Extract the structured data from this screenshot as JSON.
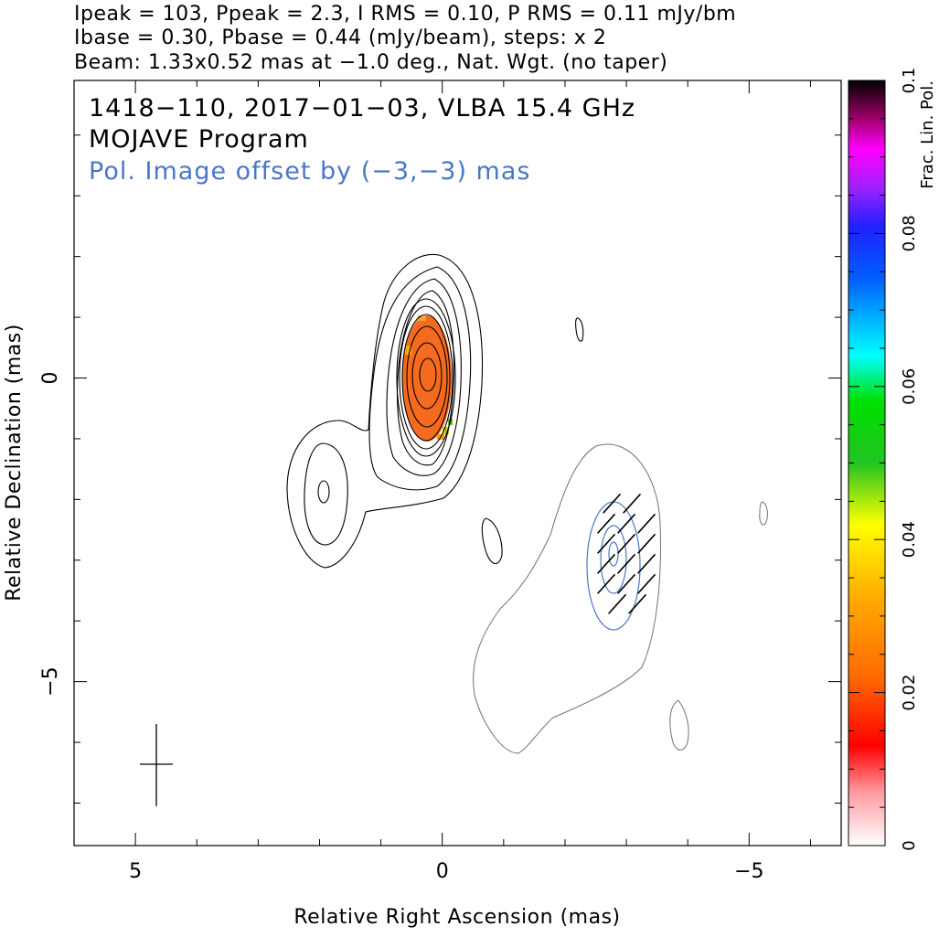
{
  "chart_data": {
    "type": "contour-image",
    "header_lines": [
      "Ipeak = 103, Ppeak = 2.3, I RMS = 0.10, P RMS = 0.11 mJy/bm",
      "Ibase = 0.30, Pbase = 0.44 (mJy/beam), steps: x 2",
      "Beam: 1.33x0.52 mas at −1.0 deg., Nat. Wgt. (no taper)"
    ],
    "annotations": [
      {
        "text": "1418−110, 2017−01−03, VLBA 15.4 GHz",
        "color": "#000000"
      },
      {
        "text": "MOJAVE Program",
        "color": "#000000"
      },
      {
        "text": "Pol. Image offset by (−3,−3) mas",
        "color": "#4a76c8"
      }
    ],
    "xlabel": "Relative Right Ascension (mas)",
    "ylabel": "Relative Declination (mas)",
    "xlim": [
      6,
      -6.5
    ],
    "ylim": [
      -7.7,
      4.9
    ],
    "x_ticks": [
      5,
      0,
      -5
    ],
    "x_tick_labels": [
      "5",
      "0",
      "−5"
    ],
    "y_ticks": [
      0,
      -5
    ],
    "y_tick_labels": [
      "0",
      "−5"
    ],
    "colorbar": {
      "label": "Frac. Lin. Pol.",
      "range": [
        0,
        0.1
      ],
      "ticks": [
        0,
        0.02,
        0.04,
        0.06,
        0.08,
        0.1
      ],
      "tick_labels": [
        "0",
        "0.02",
        "0.04",
        "0.06",
        "0.08",
        "0.1"
      ]
    },
    "beam": {
      "major_mas": 1.33,
      "minor_mas": 0.52,
      "pa_deg": -1.0,
      "center": [
        4.45,
        -6.3
      ]
    },
    "contours": {
      "core_levels": [
        0.3,
        0.6,
        1.2,
        2.4,
        4.8,
        9.6,
        19.2,
        38.4,
        76.8
      ],
      "core_center": [
        0.0,
        0.0
      ],
      "jet_component_center": [
        1.75,
        -1.85
      ],
      "pol_component_center": [
        -3.0,
        -3.0
      ]
    },
    "colors": {
      "core_pol": "#f46a1e",
      "pol_contours": "#4a76c8",
      "total_intensity": "#000000",
      "faint_contours": "#707070"
    }
  }
}
